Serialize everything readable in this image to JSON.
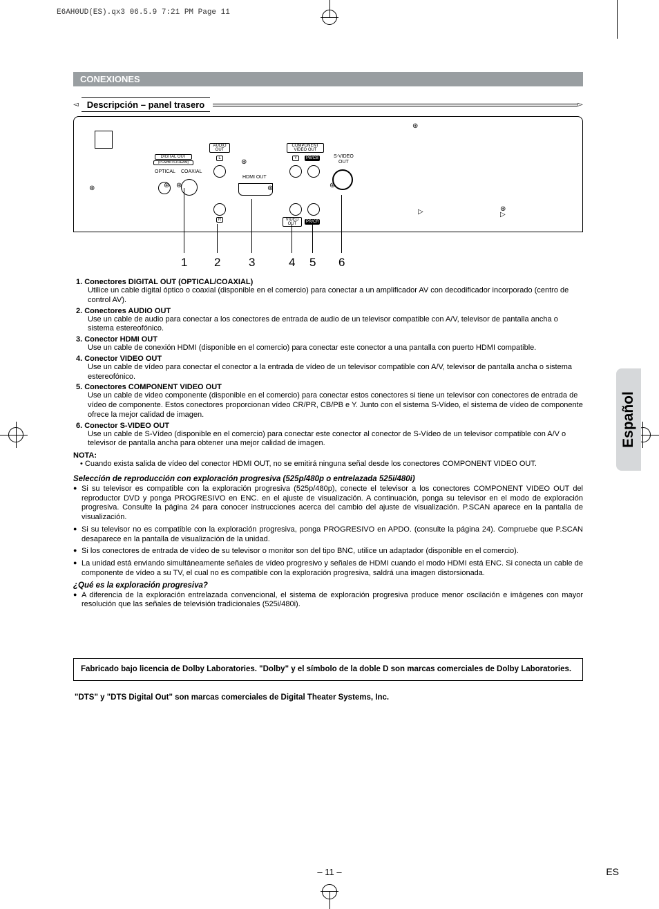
{
  "header": "E6AH0UD(ES).qx3  06.5.9 7:21 PM  Page 11",
  "section": "CONEXIONES",
  "subtitle": "Descripción – panel trasero",
  "diagram": {
    "digital_out": "DIGITAL OUT",
    "pcm": "(PCM/BITSTREAM)",
    "optical": "OPTICAL",
    "coaxial": "COAXIAL",
    "audio_out": "AUDIO\nOUT",
    "L": "L",
    "R": "R",
    "hdmi_out": "HDMI OUT",
    "component": "COMPONENT\nVIDEO OUT",
    "video_out": "VIDEO\nOUT",
    "Y": "Y",
    "PbCb": "PB/CB",
    "PrCr": "PR/CR",
    "svideo": "S-VIDEO\nOUT"
  },
  "leaders": [
    "1",
    "2",
    "3",
    "4",
    "5",
    "6"
  ],
  "items": [
    {
      "n": "1.",
      "t": "Conectores DIGITAL OUT (OPTICAL/COAXIAL)",
      "b": "Utilice un cable digital óptico o coaxial (disponible en el comercio) para conectar a un amplificador AV con decodificador incorporado (centro de control AV)."
    },
    {
      "n": "2.",
      "t": "Conectores AUDIO OUT",
      "b": "Use un cable de audio para conectar a los conectores de entrada de audio de un televisor compatible con A/V, televisor de pantalla ancha o sistema estereofónico."
    },
    {
      "n": "3.",
      "t": "Conector HDMI OUT",
      "b": "Use un cable de conexión HDMI (disponible en el comercio) para conectar este conector a una pantalla con puerto HDMI compatible."
    },
    {
      "n": "4.",
      "t": "Conector VIDEO OUT",
      "b": "Use un cable de vídeo para conectar el conector a la entrada de vídeo de un televisor compatible con A/V, televisor de pantalla ancha o sistema estereofónico."
    },
    {
      "n": "5.",
      "t": "Conectores COMPONENT VIDEO OUT",
      "b": "Use un cable de video componente (disponible en el comercio) para conectar estos conectores si tiene un televisor con conectores de entrada de vídeo de componente. Estos conectores proporcionan vídeo CR/PR, CB/PB e Y. Junto con el sistema S-Vídeo, el sistema de vídeo de componente ofrece la mejor calidad de imagen."
    },
    {
      "n": "6.",
      "t": "Conector S-VIDEO OUT",
      "b": "Use un cable de S-Vídeo (disponible en el comercio) para conectar este conector al conector de S-Vídeo de un televisor compatible con A/V o televisor de pantalla ancha para obtener una mejor calidad de imagen."
    }
  ],
  "nota_head": "NOTA:",
  "nota_body": "• Cuando exista salida de vídeo del conector HDMI OUT, no se emitirá ninguna señal desde los conectores COMPONENT VIDEO OUT.",
  "sel_head": "Selección de reproducción con exploración progresiva (525p/480p o entrelazada 525i/480i)",
  "bullets": [
    "Si su televisor es compatible con la exploración progresiva (525p/480p), conecte el televisor a los conectores COMPONENT VIDEO OUT del reproductor DVD y ponga PROGRESIVO en ENC. en el ajuste de visualización. A continuación, ponga su televisor en el modo de exploración progresiva. Consulte la página 24 para conocer instrucciones acerca del cambio del ajuste de visualización. P.SCAN aparece en la pantalla de visualización.",
    "Si su televisor no es compatible con la exploración progresiva, ponga PROGRESIVO en APDO. (consulte la página 24). Compruebe que P.SCAN desaparece en la pantalla de visualización de la unidad.",
    "Si los conectores de entrada de vídeo de su televisor o monitor son del tipo BNC, utilice un adaptador (disponible en el comercio).",
    "La unidad está enviando simultáneamente señales de vídeo progresivo y señales de HDMI cuando el modo HDMI está ENC. Si conecta un cable de componente de vídeo a su TV, el cual no es compatible con la exploración progresiva, saldrá una imagen distorsionada."
  ],
  "q_head": "¿Qué es la exploración progresiva?",
  "q_bullet": "A diferencia de la exploración entrelazada convencional, el sistema de exploración progresiva produce menor oscilación e imágenes con mayor resolución que las señales de televisión tradicionales (525i/480i).",
  "box1": "Fabricado bajo licencia de Dolby Laboratories. \"Dolby\" y el símbolo de la doble D son marcas comerciales de Dolby Laboratories.",
  "box2": "\"DTS\" y \"DTS Digital Out\" son marcas comerciales de Digital Theater Systems, Inc.",
  "side": "Español",
  "page": "– 11 –",
  "es": "ES"
}
